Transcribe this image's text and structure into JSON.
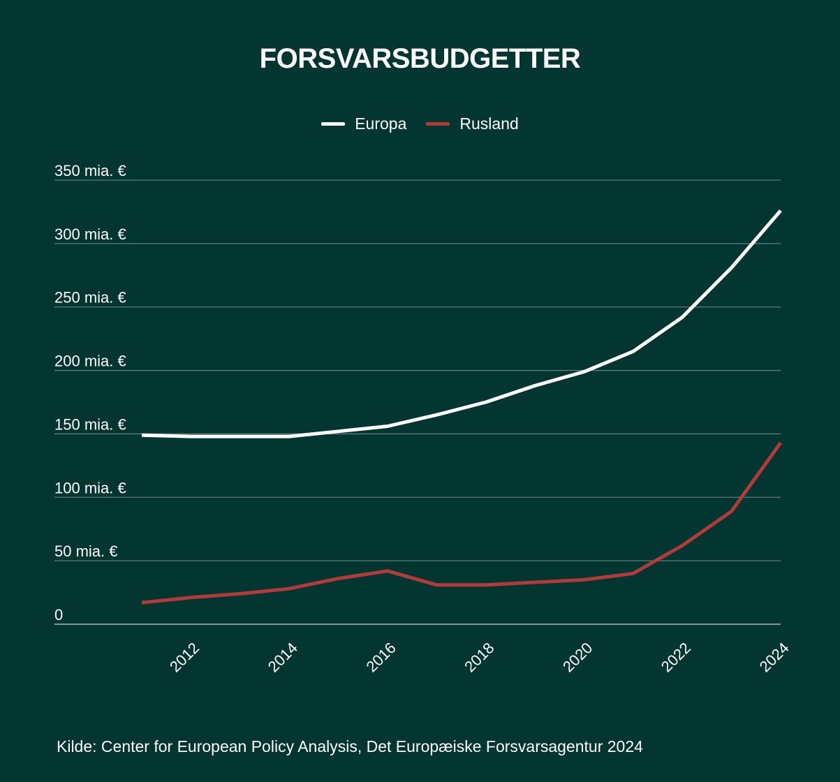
{
  "colors": {
    "background": "#033631",
    "europa": "#ffffff",
    "rusland": "#b33a3a",
    "grid": "#5d7d78"
  },
  "chart_data": {
    "type": "line",
    "title": "FORSVARSBUDGETTER",
    "xlabel": "",
    "ylabel": "",
    "x": [
      2011,
      2012,
      2013,
      2014,
      2015,
      2016,
      2017,
      2018,
      2019,
      2020,
      2021,
      2022,
      2023,
      2024
    ],
    "xticks": [
      "2012",
      "2014",
      "2016",
      "2018",
      "2020",
      "2022",
      "2024"
    ],
    "yticks": [
      {
        "value": 0,
        "label": "0"
      },
      {
        "value": 50,
        "label": "50 mia. €"
      },
      {
        "value": 100,
        "label": "100 mia. €"
      },
      {
        "value": 150,
        "label": "150 mia. €"
      },
      {
        "value": 200,
        "label": "200 mia. €"
      },
      {
        "value": 250,
        "label": "250 mia. €"
      },
      {
        "value": 300,
        "label": "300 mia. €"
      },
      {
        "value": 350,
        "label": "350 mia. €"
      }
    ],
    "ylim": [
      0,
      350
    ],
    "xlim": [
      2011,
      2024
    ],
    "grid": true,
    "legend_position": "top-center",
    "series": [
      {
        "name": "Europa",
        "color": "#ffffff",
        "values": [
          149,
          148,
          148,
          148,
          152,
          156,
          165,
          175,
          188,
          199,
          215,
          242,
          281,
          326
        ]
      },
      {
        "name": "Rusland",
        "color": "#b33a3a",
        "values": [
          17,
          21,
          24,
          28,
          36,
          42,
          31,
          31,
          33,
          35,
          40,
          62,
          89,
          143
        ]
      }
    ]
  },
  "source": "Kilde: Center for European Policy Analysis, Det Europæiske Forsvarsagentur 2024"
}
